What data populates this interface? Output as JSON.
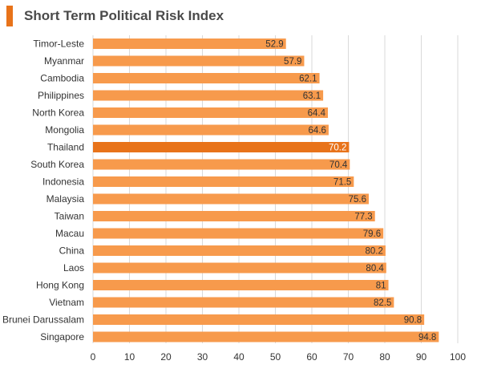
{
  "title": "Short Term Political Risk Index",
  "colors": {
    "accent": "#E8731A",
    "bar": "#F79A4C",
    "highlight": "#E8731A",
    "grid": "#D9D9D9"
  },
  "chart_data": {
    "type": "bar",
    "orientation": "horizontal",
    "title": "Short Term Political Risk Index",
    "categories": [
      "Timor-Leste",
      "Myanmar",
      "Cambodia",
      "Philippines",
      "North Korea",
      "Mongolia",
      "Thailand",
      "South Korea",
      "Indonesia",
      "Malaysia",
      "Taiwan",
      "Macau",
      "China",
      "Laos",
      "Hong Kong",
      "Vietnam",
      "Brunei Darussalam",
      "Singapore"
    ],
    "values": [
      52.9,
      57.9,
      62.1,
      63.1,
      64.4,
      64.6,
      70.2,
      70.4,
      71.5,
      75.6,
      77.3,
      79.6,
      80.2,
      80.4,
      81,
      82.5,
      90.8,
      94.8
    ],
    "value_labels": [
      "52.9",
      "57.9",
      "62.1",
      "63.1",
      "64.4",
      "64.6",
      "70.2",
      "70.4",
      "71.5",
      "75.6",
      "77.3",
      "79.6",
      "80.2",
      "80.4",
      "81",
      "82.5",
      "90.8",
      "94.8"
    ],
    "highlighted_category": "Thailand",
    "xlim": [
      0,
      100
    ],
    "xticks": [
      0,
      10,
      20,
      30,
      40,
      50,
      60,
      70,
      80,
      90,
      100
    ],
    "grid": true,
    "legend": false
  }
}
